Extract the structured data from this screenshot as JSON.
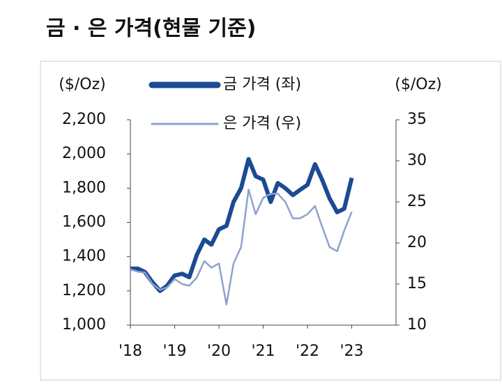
{
  "chart_data": {
    "type": "line",
    "title": "금 · 은 가격(현물 기준)",
    "y_label": "($/Oz)",
    "y2_label": "($/Oz)",
    "x": [
      2018.0,
      2018.17,
      2018.33,
      2018.5,
      2018.67,
      2018.83,
      2019.0,
      2019.17,
      2019.33,
      2019.5,
      2019.67,
      2019.83,
      2020.0,
      2020.17,
      2020.33,
      2020.5,
      2020.67,
      2020.83,
      2021.0,
      2021.17,
      2021.33,
      2021.5,
      2021.67,
      2021.83,
      2022.0,
      2022.17,
      2022.33,
      2022.5,
      2022.67,
      2022.83,
      2023.0
    ],
    "series": [
      {
        "name": "금 가격 (좌)",
        "color": "#1c4a93",
        "values": [
          1330,
          1330,
          1310,
          1250,
          1200,
          1230,
          1290,
          1300,
          1280,
          1410,
          1500,
          1470,
          1560,
          1580,
          1720,
          1800,
          1970,
          1870,
          1850,
          1720,
          1830,
          1800,
          1760,
          1790,
          1820,
          1940,
          1850,
          1740,
          1660,
          1680,
          1860
        ]
      },
      {
        "name": "은 가격 (우)",
        "color": "#8da2cf",
        "axis": "y2",
        "values": [
          16.8,
          16.5,
          16.4,
          15.0,
          14.3,
          14.6,
          15.6,
          15.0,
          14.8,
          15.8,
          17.8,
          17.0,
          17.5,
          12.5,
          17.5,
          19.5,
          26.5,
          23.5,
          25.5,
          26.0,
          26.0,
          25.0,
          23.0,
          23.0,
          23.5,
          24.5,
          22.0,
          19.5,
          19.0,
          21.5,
          23.8
        ]
      }
    ],
    "xlim": [
      2018,
      2024
    ],
    "xticks": [
      {
        "value": 2018,
        "label": "'18"
      },
      {
        "value": 2019,
        "label": "'19"
      },
      {
        "value": 2020,
        "label": "'20"
      },
      {
        "value": 2021,
        "label": "'21"
      },
      {
        "value": 2022,
        "label": "'22"
      },
      {
        "value": 2023,
        "label": "'23"
      }
    ],
    "ylim": [
      1000,
      2200
    ],
    "yticks": [
      {
        "value": 1000,
        "label": "1,000"
      },
      {
        "value": 1200,
        "label": "1,200"
      },
      {
        "value": 1400,
        "label": "1,400"
      },
      {
        "value": 1600,
        "label": "1,600"
      },
      {
        "value": 1800,
        "label": "1,800"
      },
      {
        "value": 2000,
        "label": "2,000"
      },
      {
        "value": 2200,
        "label": "2,200"
      }
    ],
    "y2lim": [
      10,
      35
    ],
    "y2ticks": [
      10,
      15,
      20,
      25,
      30,
      35
    ]
  }
}
